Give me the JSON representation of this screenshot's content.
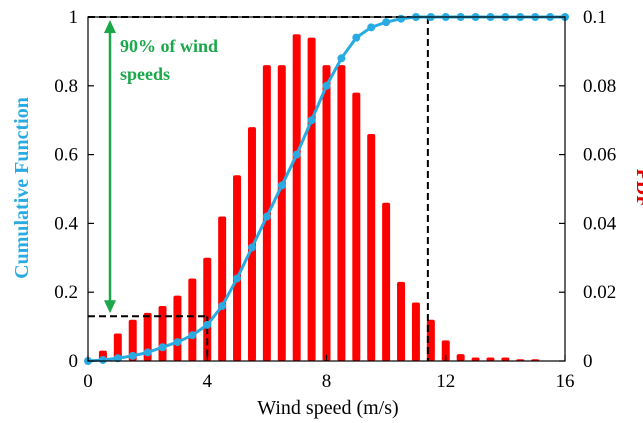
{
  "chart_data": {
    "type": "bar",
    "xlabel": "Wind speed (m/s)",
    "ylabel_left": "Cumulative Function",
    "ylabel_right": "PDF",
    "xlim": [
      0,
      16
    ],
    "ylim_left": [
      0,
      1
    ],
    "ylim_right": [
      0,
      0.1
    ],
    "x_ticks": [
      "0",
      "4",
      "8",
      "12",
      "16"
    ],
    "y_left_ticks": [
      "0",
      "0.2",
      "0.4",
      "0.6",
      "0.8",
      "1"
    ],
    "y_right_ticks": [
      "0",
      "0.02",
      "0.04",
      "0.06",
      "0.08",
      "0.1"
    ],
    "grid": false,
    "annotation": {
      "line1": "90% of wind",
      "line2": "speeds"
    },
    "colors": {
      "pdf_bars": "#ff0000",
      "cdf_line": "#29abe2",
      "annotation": "#1aa84a",
      "reference_lines": "#000000"
    },
    "reference_lines": {
      "x_low": 4,
      "x_high": 11.4,
      "cdf_low": 0.13,
      "cdf_high": 1.0
    },
    "series": [
      {
        "kind": "bar",
        "axis": "right",
        "x": [
          0.5,
          1.0,
          1.5,
          2.0,
          2.5,
          3.0,
          3.5,
          4.0,
          4.5,
          5.0,
          5.5,
          6.0,
          6.5,
          7.0,
          7.5,
          8.0,
          8.5,
          9.0,
          9.5,
          10.0,
          10.5,
          11.0,
          11.5,
          12.0,
          12.5,
          13.0,
          13.5,
          14.0,
          14.5,
          15.0
        ],
        "values": [
          0.003,
          0.008,
          0.012,
          0.014,
          0.016,
          0.019,
          0.024,
          0.03,
          0.042,
          0.054,
          0.068,
          0.086,
          0.086,
          0.095,
          0.094,
          0.086,
          0.086,
          0.078,
          0.066,
          0.046,
          0.023,
          0.017,
          0.012,
          0.006,
          0.002,
          0.001,
          0.001,
          0.001,
          0.0005,
          0.0005
        ]
      },
      {
        "kind": "line",
        "axis": "left",
        "x": [
          0,
          0.5,
          1.0,
          1.5,
          2.0,
          2.5,
          3.0,
          3.5,
          4.0,
          4.5,
          5.0,
          5.5,
          6.0,
          6.5,
          7.0,
          7.5,
          8.0,
          8.5,
          9.0,
          9.5,
          10.0,
          10.5,
          11.0,
          11.5,
          12.0,
          12.5,
          13.0,
          13.5,
          14.0,
          14.5,
          15.0,
          15.5,
          16.0
        ],
        "values": [
          0,
          0.003,
          0.008,
          0.015,
          0.025,
          0.04,
          0.055,
          0.075,
          0.105,
          0.16,
          0.24,
          0.33,
          0.42,
          0.51,
          0.6,
          0.7,
          0.8,
          0.88,
          0.94,
          0.97,
          0.985,
          0.995,
          1.0,
          1.0,
          1.0,
          1.0,
          1.0,
          1.0,
          1.0,
          1.0,
          1.0,
          1.0,
          1.0
        ]
      }
    ]
  }
}
